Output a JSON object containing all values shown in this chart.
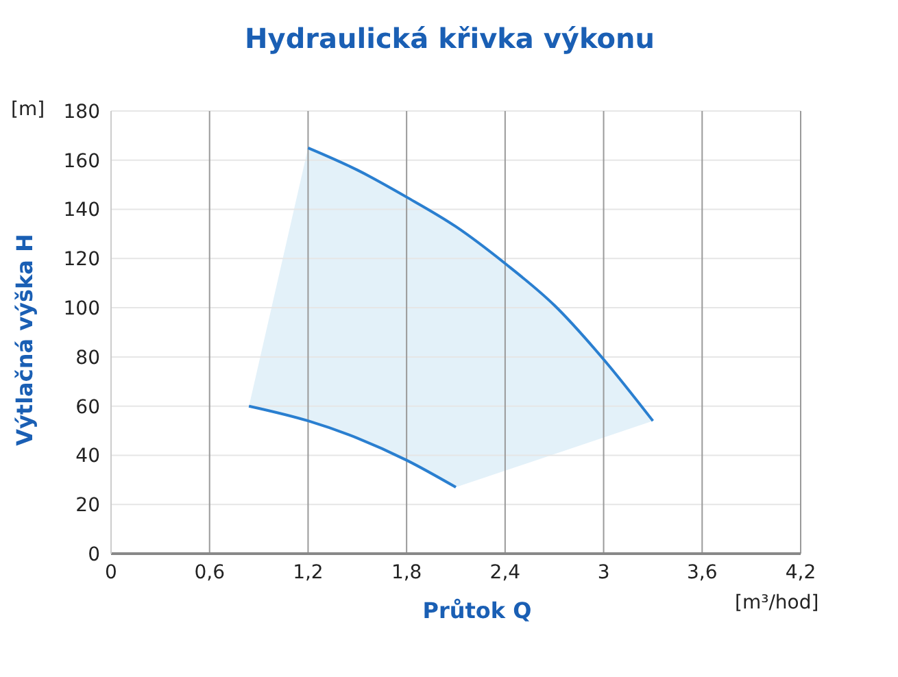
{
  "chart_data": {
    "type": "line",
    "title": "Hydraulická křivka výkonu",
    "xlabel": "Průtok Q",
    "ylabel": "Výtlačná výška H",
    "annotations": [
      "[m]",
      "[m³/hod]"
    ],
    "series": [
      {
        "color": "#2a7fd0",
        "x": [
          0.84,
          1.2,
          1.5,
          1.8,
          2.1
        ],
        "values": [
          60,
          54,
          47,
          38,
          27
        ]
      },
      {
        "color": "#2a7fd0",
        "x": [
          1.2,
          1.5,
          1.8,
          2.1,
          2.4,
          2.7,
          3.0,
          3.3
        ],
        "values": [
          165,
          156,
          145,
          133,
          118,
          101,
          79,
          54
        ]
      }
    ],
    "xlim": [
      0,
      4.2
    ],
    "xticks": [
      0,
      {
        "value": 0.6,
        "label": "0,6"
      },
      {
        "value": 1.2,
        "label": "1,2"
      },
      {
        "value": 1.8,
        "label": "1,8"
      },
      {
        "value": 2.4,
        "label": "2,4"
      },
      3,
      {
        "value": 3.6,
        "label": "3,6"
      },
      {
        "value": 4.2,
        "label": "4,2"
      }
    ],
    "ylim": [
      0,
      180
    ],
    "yticks": [
      0,
      20,
      40,
      60,
      80,
      100,
      120,
      140,
      160,
      180
    ],
    "grid": true,
    "marker": "none",
    "line_style": "solid"
  }
}
